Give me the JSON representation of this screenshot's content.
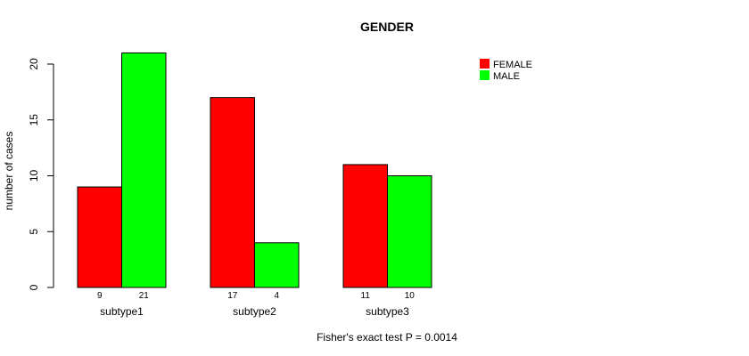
{
  "chart_data": {
    "type": "bar",
    "title": "GENDER",
    "xlabel": "",
    "ylabel": "number of cases",
    "ylim": [
      0,
      21
    ],
    "yticks": [
      0,
      5,
      10,
      15,
      20
    ],
    "categories": [
      "subtype1",
      "subtype2",
      "subtype3"
    ],
    "series": [
      {
        "name": "FEMALE",
        "color": "#ff0000",
        "values": [
          9,
          17,
          11
        ]
      },
      {
        "name": "MALE",
        "color": "#00ff00",
        "values": [
          21,
          4,
          10
        ]
      }
    ],
    "legend_position": "top-right",
    "grid": false,
    "annotation": "Fisher's exact test P = 0.0014"
  }
}
